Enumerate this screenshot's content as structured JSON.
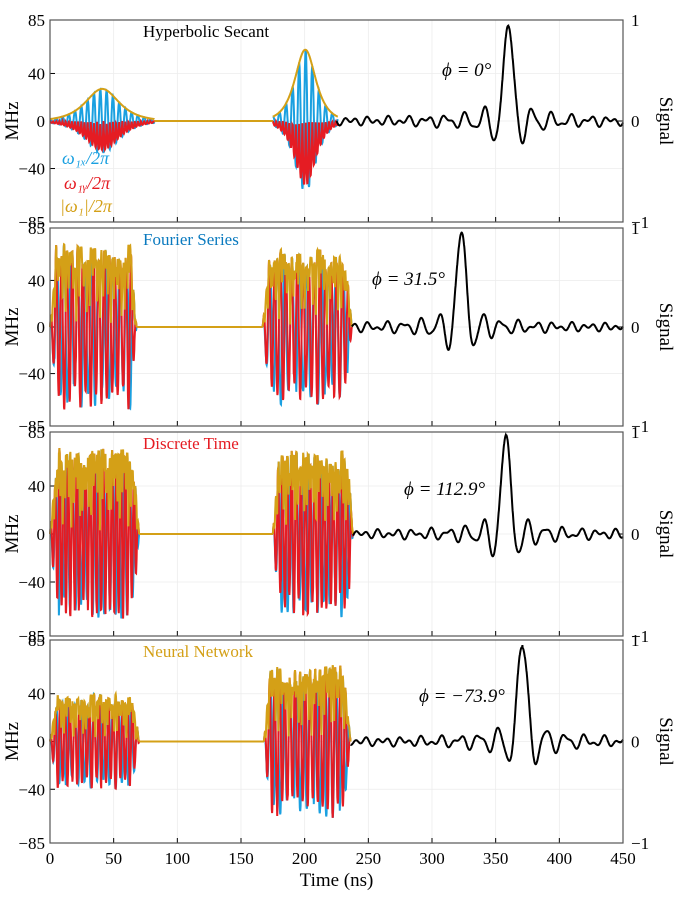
{
  "chart_data": {
    "type": "line",
    "shared_x_axis": {
      "label": "Time (ns)",
      "range": [
        0,
        450
      ],
      "ticks": [
        0,
        50,
        100,
        150,
        200,
        250,
        300,
        350,
        400,
        450
      ]
    },
    "left_axis": {
      "label": "MHz",
      "range": [
        -85,
        85
      ],
      "ticks": [
        85,
        40,
        0,
        -40,
        -85
      ],
      "tick_labels": [
        "85",
        "40",
        "0",
        "−40",
        "−85"
      ]
    },
    "right_axis": {
      "label": "Signal",
      "range": [
        -1,
        1
      ],
      "ticks": [
        1,
        0,
        -1
      ],
      "tick_labels": [
        "1",
        "0",
        "−1"
      ]
    },
    "legend": [
      {
        "label": "ω₁ₓ/2π",
        "color": "#1aa0e0"
      },
      {
        "label": "ω₁ᵧ/2π",
        "color": "#e51c23"
      },
      {
        "label": "|ω₁|/2π",
        "color": "#d4a017"
      }
    ],
    "colors": {
      "omega_x": "#1aa0e0",
      "omega_y": "#e51c23",
      "omega_abs": "#d4a017",
      "signal": "#000000"
    },
    "panels": [
      {
        "title": "Hyperbolic Secant",
        "title_color": "#000000",
        "phase_label": "ϕ = 0°",
        "pulses": [
          {
            "start": 0,
            "end": 82,
            "peak": 27,
            "shape": "sech",
            "seed": 1
          },
          {
            "start": 175,
            "end": 226,
            "peak": 60,
            "shape": "sech",
            "seed": 2
          }
        ],
        "echo": {
          "start": 225,
          "end": 450,
          "center": 360,
          "width": 2.4,
          "peak": 0.92
        }
      },
      {
        "title": "Fourier Series",
        "title_color": "#0a7abf",
        "phase_label": "ϕ = 31.5°",
        "pulses": [
          {
            "start": 0,
            "end": 68,
            "peak": 72,
            "shape": "flat",
            "seed": 3
          },
          {
            "start": 167,
            "end": 237,
            "peak": 68,
            "shape": "flat",
            "seed": 4
          }
        ],
        "echo": {
          "start": 237,
          "end": 450,
          "center": 323,
          "width": 2.2,
          "peak": 0.95
        }
      },
      {
        "title": "Discrete Time",
        "title_color": "#e51c23",
        "phase_label": "ϕ = 112.9°",
        "pulses": [
          {
            "start": 0,
            "end": 70,
            "peak": 72,
            "shape": "flat",
            "seed": 5
          },
          {
            "start": 175,
            "end": 238,
            "peak": 70,
            "shape": "flat",
            "seed": 6
          }
        ],
        "echo": {
          "start": 238,
          "end": 450,
          "center": 358,
          "width": 2.2,
          "peak": 0.95
        }
      },
      {
        "title": "Neural Network",
        "title_color": "#d4a017",
        "phase_label": "ϕ = −73.9°",
        "pulses": [
          {
            "start": 0,
            "end": 70,
            "peak": 40,
            "shape": "flat",
            "seed": 7
          },
          {
            "start": 168,
            "end": 236,
            "peak": 65,
            "shape": "flat",
            "seed": 8
          }
        ],
        "echo": {
          "start": 236,
          "end": 450,
          "center": 371,
          "width": 2.4,
          "peak": 0.95
        }
      }
    ]
  }
}
